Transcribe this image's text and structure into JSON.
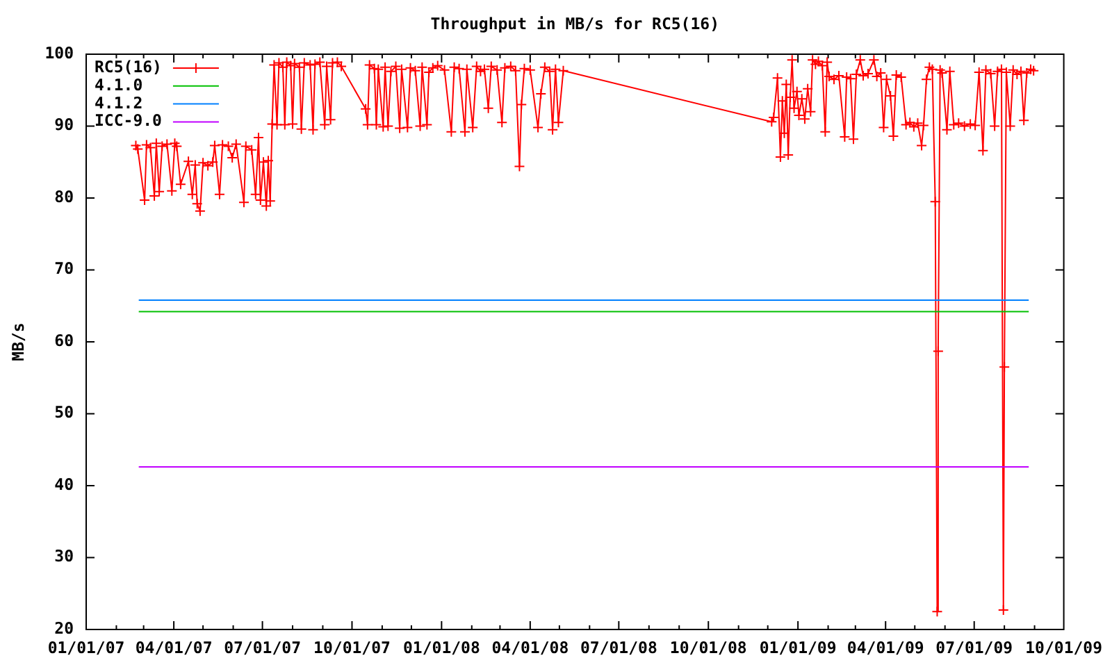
{
  "chart_data": {
    "type": "line",
    "title": "Throughput in MB/s for RC5(16)",
    "ylabel": "MB/s",
    "xlim": [
      "2007-01-01",
      "2009-10-01"
    ],
    "xticks": [
      {
        "value": "2007-01-01",
        "label": "01/01/07"
      },
      {
        "value": "2007-02-01",
        "label": null
      },
      {
        "value": "2007-03-01",
        "label": null
      },
      {
        "value": "2007-04-01",
        "label": "04/01/07"
      },
      {
        "value": "2007-05-01",
        "label": null
      },
      {
        "value": "2007-06-01",
        "label": null
      },
      {
        "value": "2007-07-01",
        "label": "07/01/07"
      },
      {
        "value": "2007-08-01",
        "label": null
      },
      {
        "value": "2007-09-01",
        "label": null
      },
      {
        "value": "2007-10-01",
        "label": "10/01/07"
      },
      {
        "value": "2007-11-01",
        "label": null
      },
      {
        "value": "2007-12-01",
        "label": null
      },
      {
        "value": "2008-01-01",
        "label": "01/01/08"
      },
      {
        "value": "2008-02-01",
        "label": null
      },
      {
        "value": "2008-03-01",
        "label": null
      },
      {
        "value": "2008-04-01",
        "label": "04/01/08"
      },
      {
        "value": "2008-05-01",
        "label": null
      },
      {
        "value": "2008-06-01",
        "label": null
      },
      {
        "value": "2008-07-01",
        "label": "07/01/08"
      },
      {
        "value": "2008-08-01",
        "label": null
      },
      {
        "value": "2008-09-01",
        "label": null
      },
      {
        "value": "2008-10-01",
        "label": "10/01/08"
      },
      {
        "value": "2008-11-01",
        "label": null
      },
      {
        "value": "2008-12-01",
        "label": null
      },
      {
        "value": "2009-01-01",
        "label": "01/01/09"
      },
      {
        "value": "2009-02-01",
        "label": null
      },
      {
        "value": "2009-03-01",
        "label": null
      },
      {
        "value": "2009-04-01",
        "label": "04/01/09"
      },
      {
        "value": "2009-05-01",
        "label": null
      },
      {
        "value": "2009-06-01",
        "label": null
      },
      {
        "value": "2009-07-01",
        "label": "07/01/09"
      },
      {
        "value": "2009-08-01",
        "label": null
      },
      {
        "value": "2009-09-01",
        "label": null
      },
      {
        "value": "2009-10-01",
        "label": "10/01/09"
      }
    ],
    "ylim": [
      20,
      100
    ],
    "yticks": [
      20,
      30,
      40,
      50,
      60,
      70,
      80,
      90,
      100
    ],
    "legend": "top left",
    "series": [
      {
        "name": "RC5(16)",
        "color": "#ff0000",
        "marker": "cross",
        "x": [
          "2007-02-21",
          "2007-02-23",
          "2007-03-02",
          "2007-03-04",
          "2007-03-08",
          "2007-03-12",
          "2007-03-14",
          "2007-03-17",
          "2007-03-20",
          "2007-03-25",
          "2007-03-30",
          "2007-04-02",
          "2007-04-04",
          "2007-04-08",
          "2007-04-16",
          "2007-04-20",
          "2007-04-23",
          "2007-04-25",
          "2007-04-28",
          "2007-05-01",
          "2007-05-06",
          "2007-05-11",
          "2007-05-13",
          "2007-05-18",
          "2007-05-21",
          "2007-05-27",
          "2007-05-31",
          "2007-06-04",
          "2007-06-12",
          "2007-06-14",
          "2007-06-20",
          "2007-06-24",
          "2007-06-27",
          "2007-06-29",
          "2007-07-02",
          "2007-07-05",
          "2007-07-07",
          "2007-07-09",
          "2007-07-11",
          "2007-07-13",
          "2007-07-16",
          "2007-07-18",
          "2007-07-22",
          "2007-07-24",
          "2007-07-26",
          "2007-07-30",
          "2007-08-01",
          "2007-08-03",
          "2007-08-08",
          "2007-08-10",
          "2007-08-13",
          "2007-08-19",
          "2007-08-22",
          "2007-08-24",
          "2007-08-29",
          "2007-09-03",
          "2007-09-05",
          "2007-09-09",
          "2007-09-11",
          "2007-09-16",
          "2007-09-20",
          "2007-10-15",
          "2007-10-17",
          "2007-10-19",
          "2007-10-24",
          "2007-10-26",
          "2007-10-28",
          "2007-11-02",
          "2007-11-04",
          "2007-11-07",
          "2007-11-10",
          "2007-11-15",
          "2007-11-19",
          "2007-11-21",
          "2007-11-27",
          "2007-11-30",
          "2007-12-05",
          "2007-12-10",
          "2007-12-12",
          "2007-12-17",
          "2007-12-19",
          "2007-12-23",
          "2007-12-28",
          "2008-01-04",
          "2008-01-11",
          "2008-01-14",
          "2008-01-19",
          "2008-01-25",
          "2008-01-27",
          "2008-02-02",
          "2008-02-06",
          "2008-02-10",
          "2008-02-14",
          "2008-02-18",
          "2008-02-21",
          "2008-02-27",
          "2008-03-03",
          "2008-03-06",
          "2008-03-12",
          "2008-03-17",
          "2008-03-21",
          "2008-03-23",
          "2008-03-26",
          "2008-04-01",
          "2008-04-09",
          "2008-04-12",
          "2008-04-16",
          "2008-04-21",
          "2008-04-24",
          "2008-04-27",
          "2008-04-30",
          "2008-05-05",
          "2008-12-05",
          "2008-12-07",
          "2008-12-11",
          "2008-12-14",
          "2008-12-16",
          "2008-12-18",
          "2008-12-20",
          "2008-12-22",
          "2008-12-24",
          "2008-12-26",
          "2008-12-28",
          "2008-12-31",
          "2009-01-02",
          "2009-01-05",
          "2009-01-08",
          "2009-01-11",
          "2009-01-14",
          "2009-01-16",
          "2009-01-19",
          "2009-01-22",
          "2009-01-26",
          "2009-01-29",
          "2009-01-31",
          "2009-02-02",
          "2009-02-07",
          "2009-02-12",
          "2009-02-18",
          "2009-02-20",
          "2009-02-24",
          "2009-02-27",
          "2009-03-02",
          "2009-03-06",
          "2009-03-09",
          "2009-03-14",
          "2009-03-20",
          "2009-03-23",
          "2009-03-27",
          "2009-03-30",
          "2009-04-02",
          "2009-04-06",
          "2009-04-09",
          "2009-04-12",
          "2009-04-17",
          "2009-04-22",
          "2009-04-26",
          "2009-04-30",
          "2009-05-04",
          "2009-05-08",
          "2009-05-10",
          "2009-05-13",
          "2009-05-16",
          "2009-05-19",
          "2009-05-22",
          "2009-05-24",
          "2009-05-25",
          "2009-05-27",
          "2009-05-29",
          "2009-06-03",
          "2009-06-06",
          "2009-06-10",
          "2009-06-15",
          "2009-06-21",
          "2009-06-27",
          "2009-07-02",
          "2009-07-06",
          "2009-07-10",
          "2009-07-13",
          "2009-07-18",
          "2009-07-22",
          "2009-07-25",
          "2009-07-29",
          "2009-07-31",
          "2009-08-01",
          "2009-08-03",
          "2009-08-07",
          "2009-08-10",
          "2009-08-14",
          "2009-08-18",
          "2009-08-21",
          "2009-08-24",
          "2009-08-28",
          "2009-08-31"
        ],
        "values": [
          87.3,
          86.8,
          79.7,
          87.4,
          87.0,
          80.3,
          87.6,
          80.9,
          87.2,
          87.5,
          81.0,
          87.6,
          87.2,
          81.9,
          85.1,
          80.5,
          84.6,
          79.2,
          78.2,
          84.9,
          84.5,
          85.0,
          87.3,
          80.5,
          87.4,
          87.2,
          85.6,
          87.5,
          79.4,
          87.2,
          86.7,
          80.5,
          88.4,
          79.7,
          85.0,
          78.9,
          85.2,
          79.6,
          90.3,
          98.5,
          90.2,
          98.8,
          98.2,
          90.2,
          98.9,
          98.4,
          90.3,
          98.7,
          98.2,
          89.6,
          98.8,
          98.5,
          89.5,
          98.6,
          98.9,
          90.2,
          98.3,
          90.9,
          98.8,
          98.9,
          98.3,
          92.4,
          90.2,
          98.5,
          98.0,
          90.2,
          97.9,
          89.9,
          98.2,
          90.0,
          97.6,
          98.3,
          89.7,
          97.9,
          89.8,
          98.1,
          97.7,
          90.0,
          98.2,
          90.2,
          97.5,
          98.1,
          98.4,
          97.8,
          89.2,
          98.2,
          98.0,
          89.2,
          97.9,
          89.8,
          98.3,
          97.6,
          97.9,
          92.5,
          98.3,
          97.8,
          90.5,
          98.1,
          98.3,
          97.7,
          84.4,
          93.0,
          98.0,
          97.8,
          89.8,
          94.5,
          98.2,
          97.6,
          89.5,
          97.9,
          90.5,
          97.7,
          90.6,
          91.2,
          96.7,
          85.7,
          93.5,
          89.0,
          95.8,
          86.0,
          94.0,
          99.2,
          92.5,
          94.8,
          91.5,
          93.8,
          91.0,
          95.2,
          92.0,
          99.2,
          98.6,
          99.0,
          98.4,
          89.2,
          98.9,
          96.9,
          96.5,
          97.0,
          88.5,
          96.8,
          96.6,
          88.2,
          97.2,
          99.2,
          97.0,
          97.3,
          99.2,
          96.9,
          97.4,
          89.8,
          96.5,
          94.2,
          88.6,
          97.1,
          96.8,
          90.2,
          90.5,
          89.9,
          90.4,
          87.3,
          90.1,
          96.5,
          98.2,
          97.9,
          79.5,
          22.5,
          58.7,
          97.8,
          97.4,
          89.5,
          97.6,
          90.2,
          90.4,
          90.0,
          90.3,
          90.1,
          97.5,
          86.6,
          97.8,
          97.3,
          90.0,
          97.6,
          97.9,
          22.7,
          56.5,
          97.5,
          90.0,
          97.8,
          97.2,
          97.6,
          90.8,
          97.4,
          97.9,
          97.7
        ]
      },
      {
        "name": "4.1.0",
        "color": "#00c000",
        "marker": "none",
        "x": [
          "2007-02-24",
          "2009-08-26"
        ],
        "values": [
          64.2,
          64.2
        ]
      },
      {
        "name": "4.1.2",
        "color": "#0080ff",
        "marker": "none",
        "x": [
          "2007-02-24",
          "2009-08-26"
        ],
        "values": [
          65.8,
          65.8
        ]
      },
      {
        "name": "ICC-9.0",
        "color": "#c000ff",
        "marker": "none",
        "x": [
          "2007-02-24",
          "2009-08-26"
        ],
        "values": [
          42.6,
          42.6
        ]
      }
    ]
  }
}
